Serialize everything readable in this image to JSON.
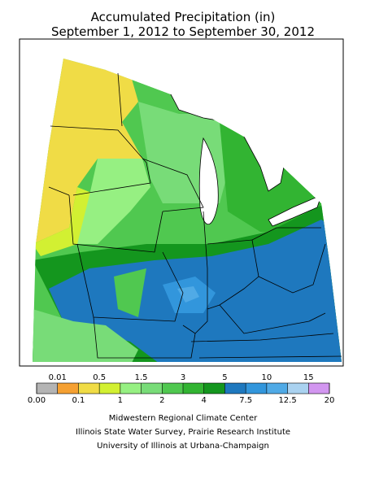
{
  "title": [
    "Accumulated Precipitation (in)",
    "September 1, 2012 to September 30, 2012"
  ],
  "legend": {
    "boundaries": [
      {
        "value": 0,
        "label": "0.00"
      },
      0.01,
      0.1,
      0.5,
      1,
      1.5,
      2,
      3,
      4,
      5,
      7.5,
      10,
      12.5,
      15,
      20
    ],
    "colors": [
      "#b4b4b4",
      "#f5a032",
      "#f0dc46",
      "#d2f032",
      "#96f082",
      "#78dc78",
      "#50c850",
      "#32b432",
      "#14961e",
      "#1e78be",
      "#3296dc",
      "#50aae6",
      "#aad2f0",
      "#d296f0"
    ]
  },
  "credits": [
    "Midwestern Regional Climate Center",
    "Illinois State Water Survey, Prairie Research Institute",
    "University of Illinois at Urbana-Champaign"
  ]
}
